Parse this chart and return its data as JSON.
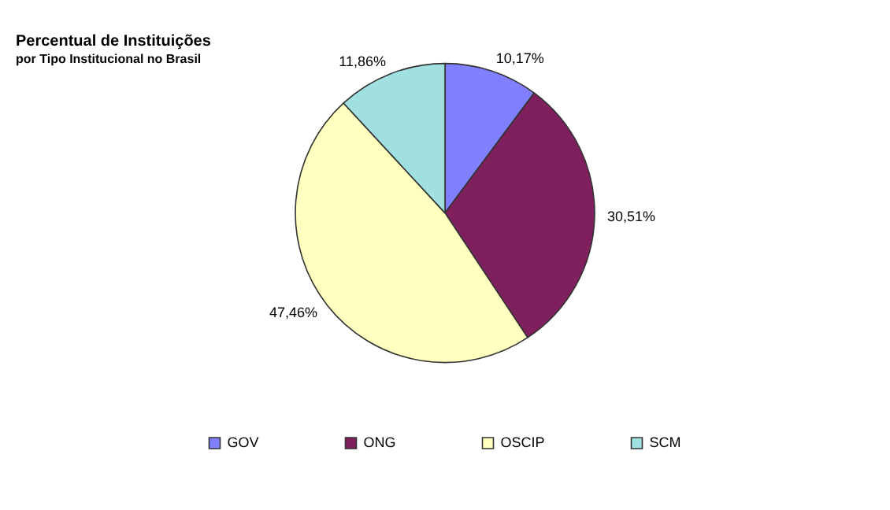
{
  "chart_data": {
    "type": "pie",
    "title": "Percentual de Instituições",
    "subtitle": "por Tipo Institucional no Brasil",
    "categories": [
      "GOV",
      "ONG",
      "OSCIP",
      "SCM"
    ],
    "values": [
      10.17,
      30.51,
      47.46,
      11.86
    ],
    "value_labels": [
      "10,17%",
      "30,51%",
      "47,46%",
      "11,86%"
    ],
    "colors": [
      "#8080ff",
      "#801f5e",
      "#ffffc0",
      "#a0e0e0"
    ],
    "legend": "bottom"
  }
}
